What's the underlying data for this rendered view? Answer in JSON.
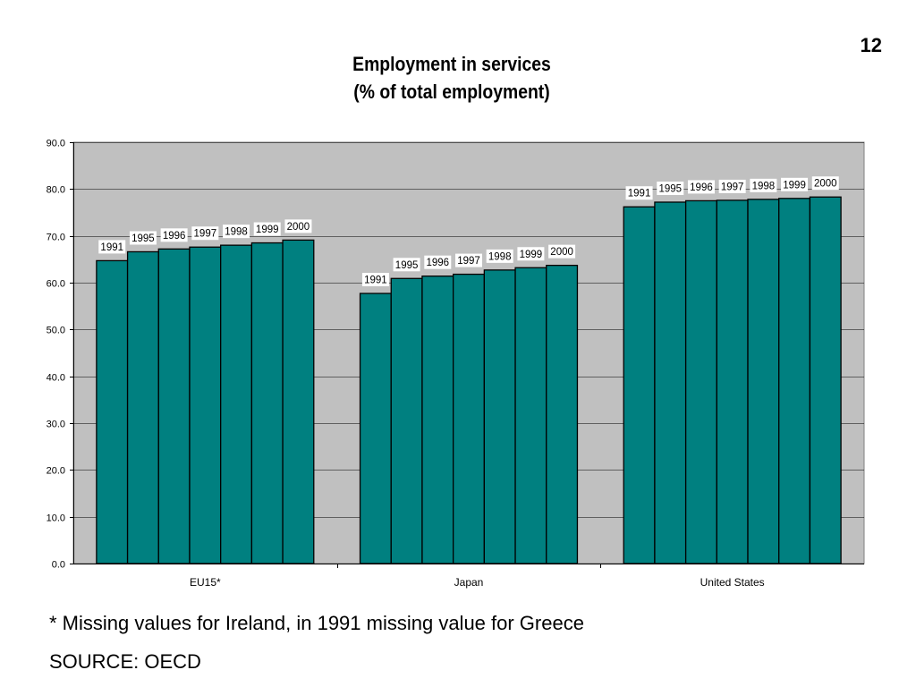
{
  "page": {
    "number": "12",
    "footnote": "* Missing values for Ireland, in 1991 missing value for Greece",
    "source": "SOURCE: OECD"
  },
  "chart_data": {
    "type": "bar",
    "title": "Employment in services",
    "subtitle": "(% of total employment)",
    "categories": [
      "EU15*",
      "Japan",
      "United States"
    ],
    "series": [
      {
        "name": "1991",
        "values": [
          64.7,
          57.7,
          76.2
        ]
      },
      {
        "name": "1995",
        "values": [
          66.6,
          60.9,
          77.2
        ]
      },
      {
        "name": "1996",
        "values": [
          67.2,
          61.4,
          77.5
        ]
      },
      {
        "name": "1997",
        "values": [
          67.6,
          61.8,
          77.6
        ]
      },
      {
        "name": "1998",
        "values": [
          68.0,
          62.7,
          77.8
        ]
      },
      {
        "name": "1999",
        "values": [
          68.5,
          63.2,
          78.0
        ]
      },
      {
        "name": "2000",
        "values": [
          69.1,
          63.7,
          78.3
        ]
      }
    ],
    "ylim": [
      0,
      90
    ],
    "yticks": [
      "0.0",
      "10.0",
      "20.0",
      "30.0",
      "40.0",
      "50.0",
      "60.0",
      "70.0",
      "80.0",
      "90.0"
    ],
    "xlabel": "",
    "ylabel": "",
    "grid": true,
    "data_labels": "series name",
    "colors": {
      "bar": "#008080",
      "plot_background": "#c0c0c0",
      "gridline": "#000000",
      "label_box": "#ffffff"
    }
  }
}
